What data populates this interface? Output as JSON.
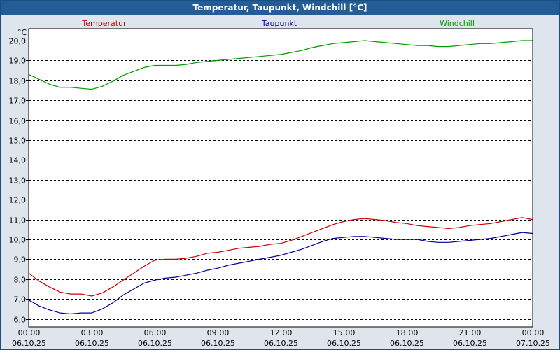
{
  "window": {
    "title": "Temperatur, Taupunkt, Windchill [°C]"
  },
  "chart_data": {
    "type": "line",
    "title": "Temperatur, Taupunkt, Windchill [°C]",
    "ylabel": "°C",
    "xlabel": "",
    "ylim": [
      5.6,
      20.6
    ],
    "yticks": [
      6,
      7,
      8,
      9,
      10,
      11,
      12,
      13,
      14,
      15,
      16,
      17,
      18,
      19,
      20
    ],
    "ytick_labels": [
      "6,0",
      "7,0",
      "8,0",
      "9,0",
      "10,0",
      "11,0",
      "12,0",
      "13,0",
      "14,0",
      "15,0",
      "16,0",
      "17,0",
      "18,0",
      "19,0",
      "20,0"
    ],
    "xlim": [
      0,
      24
    ],
    "xticks": [
      {
        "h": 0,
        "time": "00:00",
        "date": "06.10.25"
      },
      {
        "h": 3,
        "time": "03:00",
        "date": "06.10.25"
      },
      {
        "h": 6,
        "time": "06:00",
        "date": "06.10.25"
      },
      {
        "h": 9,
        "time": "09:00",
        "date": "06.10.25"
      },
      {
        "h": 12,
        "time": "12:00",
        "date": "06.10.25"
      },
      {
        "h": 15,
        "time": "15:00",
        "date": "06.10.25"
      },
      {
        "h": 18,
        "time": "18:00",
        "date": "06.10.25"
      },
      {
        "h": 21,
        "time": "21:00",
        "date": "06.10.25"
      },
      {
        "h": 24,
        "time": "00:00",
        "date": "07.10.25"
      }
    ],
    "grid": true,
    "legend_position": "top",
    "series": [
      {
        "name": "Temperatur",
        "color": "#cc0000",
        "points": [
          [
            0,
            8.3
          ],
          [
            0.5,
            7.9
          ],
          [
            1,
            7.6
          ],
          [
            1.5,
            7.35
          ],
          [
            2,
            7.25
          ],
          [
            2.5,
            7.25
          ],
          [
            3,
            7.15
          ],
          [
            3.5,
            7.3
          ],
          [
            4,
            7.6
          ],
          [
            4.5,
            7.95
          ],
          [
            5,
            8.3
          ],
          [
            5.5,
            8.65
          ],
          [
            6,
            8.95
          ],
          [
            6.5,
            9.0
          ],
          [
            7,
            9.0
          ],
          [
            7.5,
            9.05
          ],
          [
            8,
            9.15
          ],
          [
            8.5,
            9.3
          ],
          [
            9,
            9.35
          ],
          [
            9.5,
            9.45
          ],
          [
            10,
            9.55
          ],
          [
            10.5,
            9.6
          ],
          [
            11,
            9.65
          ],
          [
            11.5,
            9.75
          ],
          [
            12,
            9.8
          ],
          [
            12.5,
            9.95
          ],
          [
            13,
            10.15
          ],
          [
            13.5,
            10.35
          ],
          [
            14,
            10.55
          ],
          [
            14.5,
            10.75
          ],
          [
            15,
            10.9
          ],
          [
            15.5,
            11.0
          ],
          [
            16,
            11.05
          ],
          [
            16.5,
            11.0
          ],
          [
            17,
            10.95
          ],
          [
            17.5,
            10.85
          ],
          [
            18,
            10.8
          ],
          [
            18.5,
            10.7
          ],
          [
            19,
            10.65
          ],
          [
            19.5,
            10.6
          ],
          [
            20,
            10.55
          ],
          [
            20.5,
            10.6
          ],
          [
            21,
            10.7
          ],
          [
            21.5,
            10.75
          ],
          [
            22,
            10.8
          ],
          [
            22.5,
            10.9
          ],
          [
            23,
            11.0
          ],
          [
            23.5,
            11.1
          ],
          [
            24,
            11.0
          ]
        ]
      },
      {
        "name": "Taupunkt",
        "color": "#000099",
        "points": [
          [
            0,
            6.95
          ],
          [
            0.5,
            6.65
          ],
          [
            1,
            6.45
          ],
          [
            1.5,
            6.3
          ],
          [
            2,
            6.25
          ],
          [
            2.5,
            6.3
          ],
          [
            3,
            6.3
          ],
          [
            3.5,
            6.5
          ],
          [
            4,
            6.8
          ],
          [
            4.5,
            7.2
          ],
          [
            5,
            7.5
          ],
          [
            5.5,
            7.8
          ],
          [
            6,
            7.95
          ],
          [
            6.5,
            8.05
          ],
          [
            7,
            8.1
          ],
          [
            7.5,
            8.2
          ],
          [
            8,
            8.3
          ],
          [
            8.5,
            8.45
          ],
          [
            9,
            8.55
          ],
          [
            9.5,
            8.7
          ],
          [
            10,
            8.8
          ],
          [
            10.5,
            8.9
          ],
          [
            11,
            9.0
          ],
          [
            11.5,
            9.1
          ],
          [
            12,
            9.2
          ],
          [
            12.5,
            9.35
          ],
          [
            13,
            9.5
          ],
          [
            13.5,
            9.7
          ],
          [
            14,
            9.9
          ],
          [
            14.5,
            10.05
          ],
          [
            15,
            10.1
          ],
          [
            15.5,
            10.15
          ],
          [
            16,
            10.15
          ],
          [
            16.5,
            10.1
          ],
          [
            17,
            10.05
          ],
          [
            17.5,
            10.0
          ],
          [
            18,
            10.0
          ],
          [
            18.5,
            10.0
          ],
          [
            19,
            9.9
          ],
          [
            19.5,
            9.85
          ],
          [
            20,
            9.85
          ],
          [
            20.5,
            9.9
          ],
          [
            21,
            9.95
          ],
          [
            21.5,
            10.0
          ],
          [
            22,
            10.05
          ],
          [
            22.5,
            10.15
          ],
          [
            23,
            10.25
          ],
          [
            23.5,
            10.35
          ],
          [
            24,
            10.3
          ]
        ]
      },
      {
        "name": "Windchill",
        "color": "#009900",
        "points": [
          [
            0,
            18.3
          ],
          [
            0.5,
            18.05
          ],
          [
            1,
            17.8
          ],
          [
            1.5,
            17.65
          ],
          [
            2,
            17.65
          ],
          [
            2.5,
            17.6
          ],
          [
            3,
            17.55
          ],
          [
            3.5,
            17.7
          ],
          [
            4,
            17.95
          ],
          [
            4.5,
            18.25
          ],
          [
            5,
            18.45
          ],
          [
            5.5,
            18.65
          ],
          [
            6,
            18.75
          ],
          [
            6.5,
            18.75
          ],
          [
            7,
            18.75
          ],
          [
            7.5,
            18.8
          ],
          [
            8,
            18.9
          ],
          [
            8.5,
            18.95
          ],
          [
            9,
            19.0
          ],
          [
            9.5,
            19.05
          ],
          [
            10,
            19.1
          ],
          [
            10.5,
            19.15
          ],
          [
            11,
            19.2
          ],
          [
            11.5,
            19.25
          ],
          [
            12,
            19.3
          ],
          [
            12.5,
            19.4
          ],
          [
            13,
            19.5
          ],
          [
            13.5,
            19.65
          ],
          [
            14,
            19.75
          ],
          [
            14.5,
            19.85
          ],
          [
            15,
            19.9
          ],
          [
            15.5,
            19.95
          ],
          [
            16,
            20.0
          ],
          [
            16.5,
            19.95
          ],
          [
            17,
            19.9
          ],
          [
            17.5,
            19.85
          ],
          [
            18,
            19.8
          ],
          [
            18.5,
            19.75
          ],
          [
            19,
            19.75
          ],
          [
            19.5,
            19.7
          ],
          [
            20,
            19.7
          ],
          [
            20.5,
            19.75
          ],
          [
            21,
            19.8
          ],
          [
            21.5,
            19.85
          ],
          [
            22,
            19.85
          ],
          [
            22.5,
            19.9
          ],
          [
            23,
            19.95
          ],
          [
            23.5,
            20.0
          ],
          [
            24,
            20.0
          ]
        ]
      }
    ]
  }
}
